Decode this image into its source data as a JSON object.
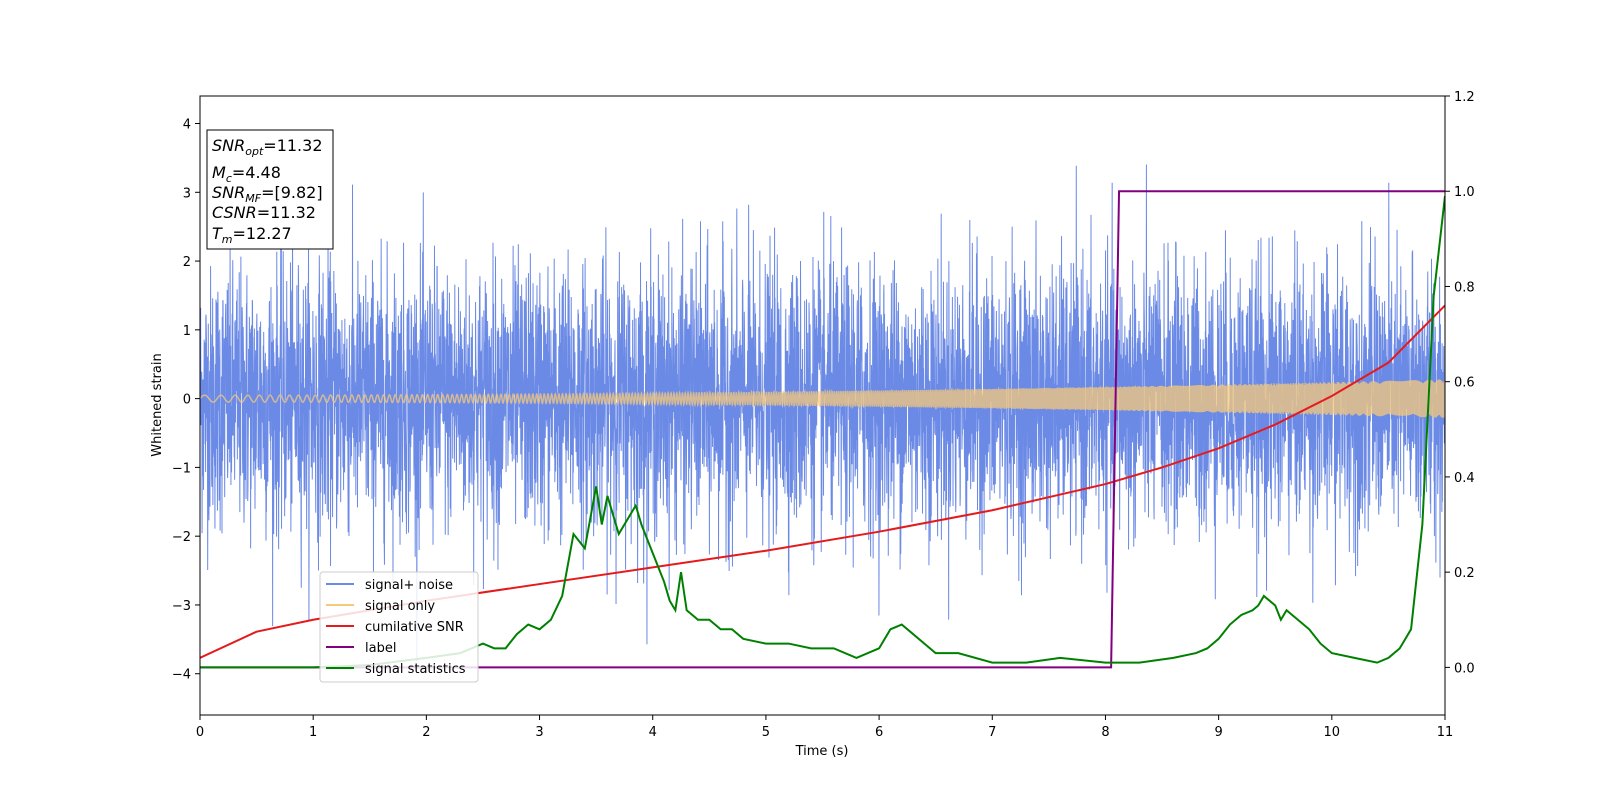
{
  "chart_data": {
    "type": "line",
    "xlabel": "Time (s)",
    "ylabel": "Whitened strain",
    "xlim": [
      0,
      11
    ],
    "ylim": [
      -4.6,
      4.4
    ],
    "y2lim": [
      -0.1,
      1.2
    ],
    "grid": false,
    "legend_placement": "lower-left",
    "x_ticks": [
      0,
      1,
      2,
      3,
      4,
      5,
      6,
      7,
      8,
      9,
      10,
      11
    ],
    "y_ticks": [
      -4,
      -3,
      -2,
      -1,
      0,
      1,
      2,
      3,
      4
    ],
    "y2_ticks": [
      0.0,
      0.2,
      0.4,
      0.6,
      0.8,
      1.0,
      1.2
    ],
    "annotation": {
      "snr_opt": {
        "base": "SNR",
        "sub": "opt",
        "value": "=11.32"
      },
      "mc": {
        "base": "M",
        "sub": "c",
        "value": "=4.48"
      },
      "snr_mf": {
        "base": "SNR",
        "sub": "MF",
        "value": "=[9.82]"
      },
      "csnr": {
        "base": "CSNR",
        "value": "=11.32"
      },
      "tm": {
        "base": "T",
        "sub": "m",
        "value": "=12.27"
      }
    },
    "series": [
      {
        "name": "signal+ noise",
        "color": "#6b8ae6",
        "axis": "left",
        "kind": "noise",
        "approx_std": 0.95,
        "approx_range": [
          -4.2,
          4.0
        ]
      },
      {
        "name": "signal only",
        "color": "#f5c87a",
        "axis": "left",
        "kind": "chirp",
        "amplitude_start": 0.05,
        "amplitude_end": 0.28
      },
      {
        "name": "cumilative SNR",
        "color": "#e41a1c",
        "axis": "right",
        "x": [
          0,
          0.5,
          1,
          2,
          3,
          4,
          5,
          6,
          7,
          8,
          8.5,
          9,
          9.5,
          10,
          10.5,
          11
        ],
        "values": [
          0.02,
          0.075,
          0.1,
          0.14,
          0.175,
          0.21,
          0.245,
          0.285,
          0.33,
          0.385,
          0.42,
          0.46,
          0.51,
          0.57,
          0.64,
          0.76
        ]
      },
      {
        "name": "label",
        "color": "#800080",
        "axis": "right",
        "x": [
          0,
          8.05,
          8.12,
          11
        ],
        "values": [
          0.0,
          0.0,
          1.0,
          1.0
        ]
      },
      {
        "name": "signal statistics",
        "color": "#008000",
        "axis": "right",
        "x": [
          0,
          1,
          1.5,
          2,
          2.3,
          2.5,
          2.6,
          2.7,
          2.8,
          2.9,
          3.0,
          3.1,
          3.2,
          3.3,
          3.4,
          3.5,
          3.55,
          3.6,
          3.7,
          3.8,
          3.85,
          3.9,
          4.0,
          4.1,
          4.15,
          4.2,
          4.25,
          4.3,
          4.4,
          4.5,
          4.6,
          4.7,
          4.8,
          5.0,
          5.2,
          5.4,
          5.6,
          5.8,
          6.0,
          6.1,
          6.2,
          6.3,
          6.4,
          6.5,
          6.7,
          7.0,
          7.3,
          7.6,
          8.0,
          8.3,
          8.6,
          8.8,
          8.9,
          9.0,
          9.1,
          9.2,
          9.3,
          9.35,
          9.4,
          9.5,
          9.55,
          9.6,
          9.7,
          9.8,
          9.9,
          10.0,
          10.2,
          10.4,
          10.5,
          10.6,
          10.7,
          10.8,
          10.9,
          11.0
        ],
        "values": [
          0.0,
          0.0,
          0.005,
          0.02,
          0.03,
          0.05,
          0.04,
          0.04,
          0.07,
          0.09,
          0.08,
          0.1,
          0.15,
          0.28,
          0.25,
          0.38,
          0.3,
          0.36,
          0.28,
          0.32,
          0.34,
          0.3,
          0.24,
          0.18,
          0.14,
          0.12,
          0.2,
          0.12,
          0.1,
          0.1,
          0.08,
          0.08,
          0.06,
          0.05,
          0.05,
          0.04,
          0.04,
          0.02,
          0.04,
          0.08,
          0.09,
          0.07,
          0.05,
          0.03,
          0.03,
          0.01,
          0.01,
          0.02,
          0.01,
          0.01,
          0.02,
          0.03,
          0.04,
          0.06,
          0.09,
          0.11,
          0.12,
          0.13,
          0.15,
          0.13,
          0.1,
          0.12,
          0.1,
          0.08,
          0.05,
          0.03,
          0.02,
          0.01,
          0.02,
          0.04,
          0.08,
          0.3,
          0.78,
          0.99
        ]
      }
    ]
  }
}
